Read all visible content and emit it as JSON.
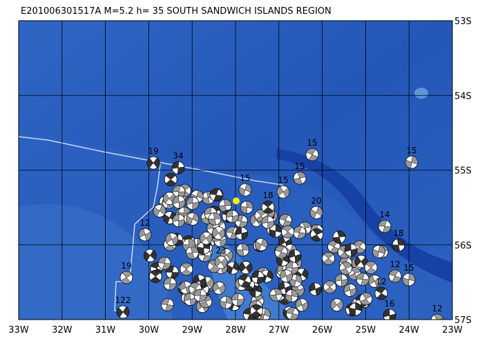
{
  "title": "E201006301517A  M=5.2  h= 35  SOUTH SANDWICH ISLANDS REGION",
  "lon_labels": [
    "33W",
    "32W",
    "31W",
    "30W",
    "29W",
    "28W",
    "27W",
    "26W",
    "25W",
    "24W",
    "23W"
  ],
  "lat_labels": [
    "53S",
    "54S",
    "55S",
    "56S",
    "57S"
  ],
  "events": [
    {
      "depth": "19"
    },
    {
      "depth": "15"
    },
    {
      "depth": "15"
    },
    {
      "depth": "34"
    },
    {
      "depth": "15"
    },
    {
      "depth": "15"
    },
    {
      "depth": "18"
    },
    {
      "depth": "20"
    },
    {
      "depth": "14"
    },
    {
      "depth": "18"
    },
    {
      "depth": "12"
    },
    {
      "depth": "19"
    },
    {
      "depth": "122"
    },
    {
      "depth": "12"
    },
    {
      "depth": "15"
    },
    {
      "depth": "16"
    },
    {
      "depth": "12"
    },
    {
      "depth": "23"
    },
    {
      "depth": "12"
    },
    {
      "depth": "15"
    }
  ]
}
